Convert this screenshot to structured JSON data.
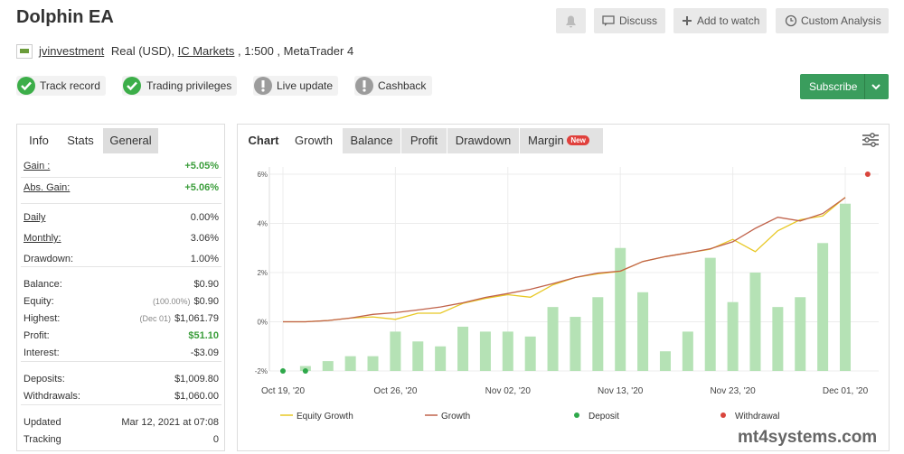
{
  "header": {
    "title": "Dolphin EA",
    "buttons": [
      "Discuss",
      "Add to watch",
      "Custom Analysis"
    ]
  },
  "account": {
    "user": "jvinvestment",
    "type": "Real (USD),",
    "broker": "IC Markets",
    "details": ", 1:500 , MetaTrader 4"
  },
  "badges": [
    "Track record",
    "Trading privileges",
    "Live update",
    "Cashback"
  ],
  "subscribe": "Subscribe",
  "stats": {
    "tabs": [
      "Info",
      "Stats",
      "General"
    ],
    "rows": [
      {
        "label": "Gain :",
        "value": "+5.05%",
        "color": "#3a9d3a"
      },
      {
        "label": "Abs. Gain:",
        "value": "+5.06%",
        "color": "#3a9d3a"
      },
      {
        "label": "Daily",
        "value": "0.00%"
      },
      {
        "label": "Monthly:",
        "value": "3.06%"
      },
      {
        "label": "Drawdown:",
        "value": "1.00%"
      },
      {
        "label": "Balance:",
        "value": "$0.90"
      },
      {
        "label": "Equity:",
        "note": "(100.00%)",
        "value": "$0.90"
      },
      {
        "label": "Highest:",
        "note": "(Dec 01)",
        "value": "$1,061.79"
      },
      {
        "label": "Profit:",
        "value": "$51.10",
        "color": "#3a9d3a"
      },
      {
        "label": "Interest:",
        "value": "-$3.09"
      },
      {
        "label": "Deposits:",
        "value": "$1,009.80"
      },
      {
        "label": "Withdrawals:",
        "value": "$1,060.00"
      },
      {
        "label": "Updated",
        "value": "Mar 12, 2021 at 07:08"
      },
      {
        "label": "Tracking",
        "value": "0"
      }
    ]
  },
  "chart_tabs": {
    "tabs": [
      "Chart",
      "Growth",
      "Balance",
      "Profit",
      "Drawdown",
      "Margin"
    ],
    "new_badge": "New"
  },
  "chart_data": {
    "type": "line",
    "categories": [
      "Oct 19, '20",
      null,
      null,
      null,
      null,
      "Oct 26, '20",
      null,
      null,
      null,
      null,
      "Nov 02, '20",
      null,
      null,
      null,
      null,
      "Nov 13, '20",
      null,
      null,
      null,
      null,
      "Nov 23, '20",
      null,
      null,
      null,
      null,
      "Dec 01, '20",
      null
    ],
    "ylim": [
      -2,
      6
    ],
    "yticks": [
      {
        "value": -2,
        "label": "-2%"
      },
      {
        "value": 0,
        "label": "0%"
      },
      {
        "value": 2,
        "label": "2%"
      },
      {
        "value": 4,
        "label": "4%"
      },
      {
        "value": 6,
        "label": "6%"
      }
    ],
    "grid": true,
    "bars": {
      "type": "bar",
      "color": "#b5e2b5",
      "values": [
        null,
        -1.8,
        -1.6,
        -1.4,
        -1.4,
        -0.4,
        -0.8,
        -1.0,
        -0.2,
        -0.4,
        -0.4,
        -0.6,
        0.6,
        0.2,
        1.0,
        3.0,
        1.2,
        -1.2,
        -0.4,
        2.6,
        0.8,
        2.0,
        0.6,
        1.0,
        3.2,
        4.8,
        null
      ]
    },
    "series": [
      {
        "name": "Equity Growth",
        "type": "line",
        "color": "#e8c825",
        "values": [
          0.0,
          0.0,
          0.05,
          0.15,
          0.2,
          0.1,
          0.35,
          0.35,
          0.75,
          0.95,
          1.1,
          1.0,
          1.5,
          1.8,
          1.95,
          2.05,
          2.45,
          2.65,
          2.8,
          2.95,
          3.35,
          2.85,
          3.7,
          4.15,
          4.3,
          5.06,
          null
        ]
      },
      {
        "name": "Growth",
        "type": "line",
        "color": "#c0624a",
        "values": [
          0.0,
          0.0,
          0.05,
          0.15,
          0.3,
          0.37,
          0.48,
          0.6,
          0.77,
          0.99,
          1.15,
          1.32,
          1.55,
          1.8,
          1.98,
          2.06,
          2.45,
          2.65,
          2.8,
          2.97,
          3.25,
          3.8,
          4.25,
          4.1,
          4.4,
          5.05,
          null
        ]
      },
      {
        "name": "Deposit",
        "type": "scatter",
        "color": "#2ea84a",
        "values": [
          -2,
          -2,
          null,
          null,
          null,
          null,
          null,
          null,
          null,
          null,
          null,
          null,
          null,
          null,
          null,
          null,
          null,
          null,
          null,
          null,
          null,
          null,
          null,
          null,
          null,
          null,
          null
        ]
      },
      {
        "name": "Withdrawal",
        "type": "scatter",
        "color": "#d9453c",
        "values": [
          null,
          null,
          null,
          null,
          null,
          null,
          null,
          null,
          null,
          null,
          null,
          null,
          null,
          null,
          null,
          null,
          null,
          null,
          null,
          null,
          null,
          null,
          null,
          null,
          null,
          null,
          6
        ]
      }
    ]
  },
  "watermark": "mt4systems.com"
}
